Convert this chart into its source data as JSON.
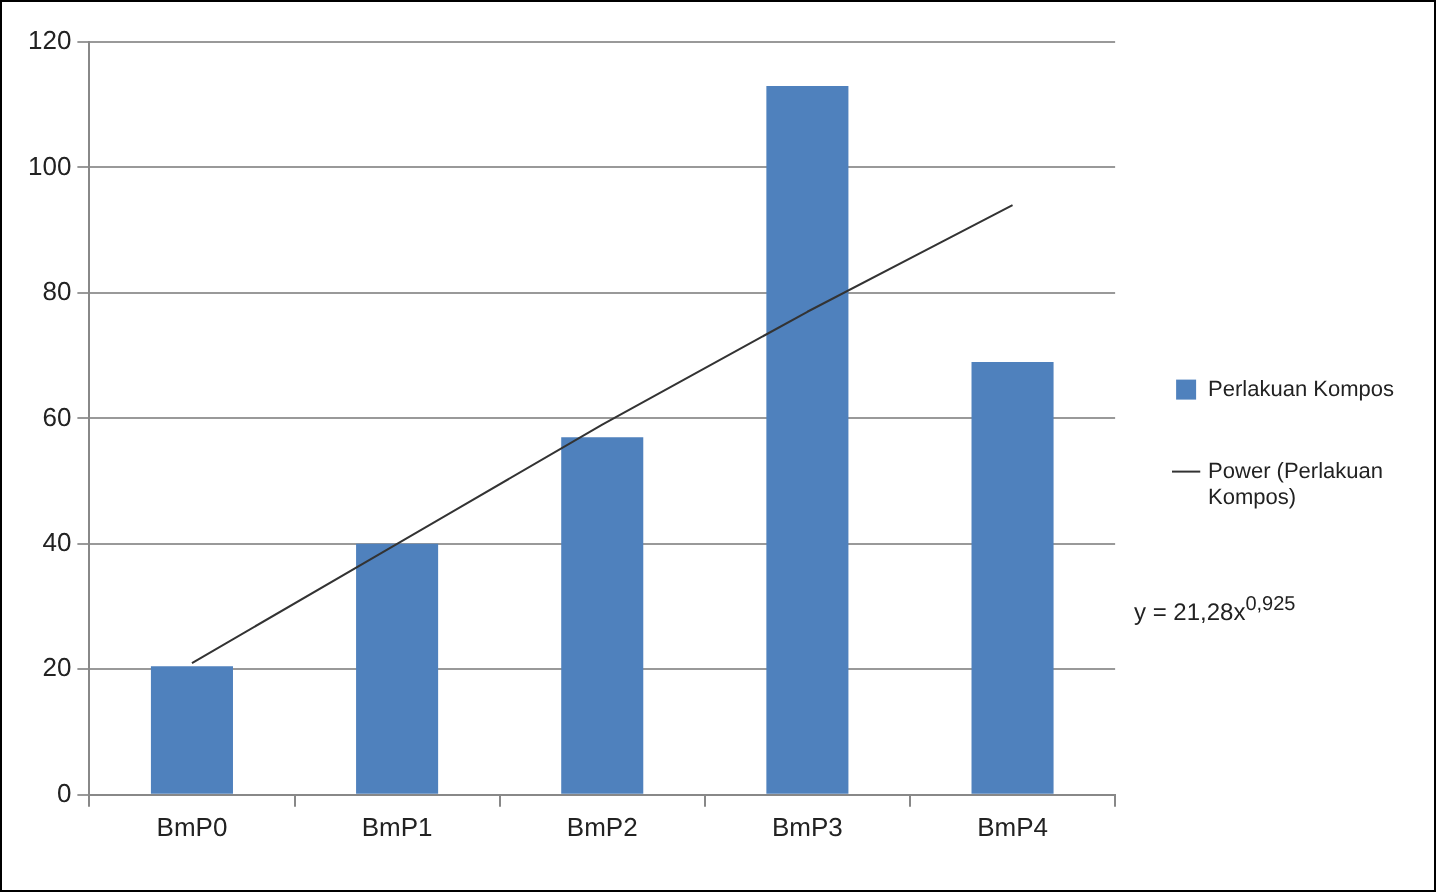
{
  "chart_data": {
    "type": "bar",
    "categories": [
      "BmP0",
      "BmP1",
      "BmP2",
      "BmP3",
      "BmP4"
    ],
    "series": [
      {
        "name": "Perlakuan Kompos",
        "color": "#4f81bd",
        "values": [
          20.5,
          40,
          57,
          113,
          69
        ]
      },
      {
        "name": "Power (Perlakuan Kompos)",
        "type": "line",
        "color": "#333333",
        "values": [
          21,
          40,
          59,
          77,
          94
        ]
      }
    ],
    "ylim": [
      0,
      120
    ],
    "yticks": [
      0,
      20,
      40,
      60,
      80,
      100,
      120
    ],
    "grid": "y",
    "legend": "right",
    "marker": "none",
    "annotations": [
      "y = 21,28x$^{0,925}$"
    ]
  }
}
